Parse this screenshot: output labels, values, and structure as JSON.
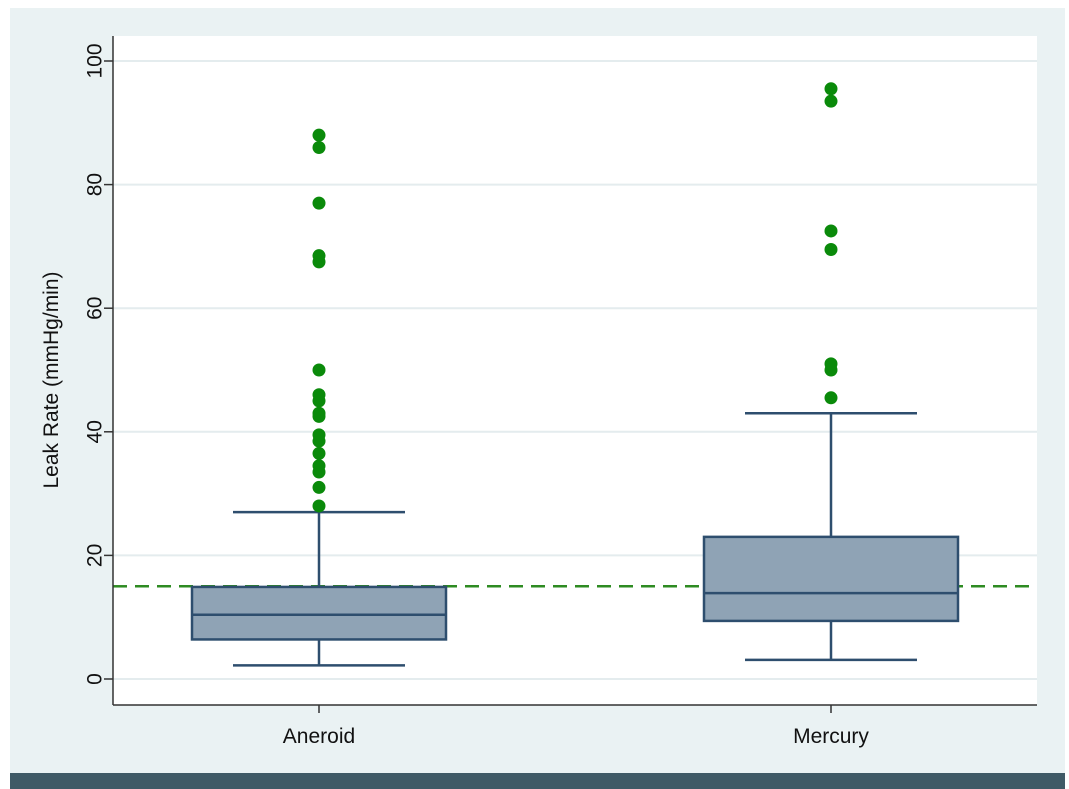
{
  "chart_data": {
    "type": "box",
    "title": "",
    "xlabel": "",
    "ylabel": "Leak Rate (mmHg/min)",
    "ylim": [
      0,
      100
    ],
    "yticks": [
      0,
      20,
      40,
      60,
      80,
      100
    ],
    "grid": true,
    "reference_line": {
      "y": 15,
      "style": "dashed",
      "color": "#2e8b22"
    },
    "colors": {
      "box_fill": "#8fa3b5",
      "box_stroke": "#2e4e6e",
      "outlier": "#0a8a0a",
      "plot_bg": "#ffffff",
      "outer_bg": "#eaf2f3",
      "grid": "#e4ecee"
    },
    "categories": [
      "Aneroid",
      "Mercury"
    ],
    "boxes": [
      {
        "category": "Aneroid",
        "whisker_low": 2.2,
        "q1": 6.4,
        "median": 10.4,
        "q3": 14.9,
        "whisker_high": 27.0,
        "outliers": [
          28,
          31,
          33.5,
          34.5,
          36.5,
          38.5,
          39.5,
          42.5,
          43,
          45,
          46,
          50,
          67.5,
          68.5,
          77,
          86,
          88
        ]
      },
      {
        "category": "Mercury",
        "whisker_low": 3.1,
        "q1": 9.4,
        "median": 13.9,
        "q3": 23.0,
        "whisker_high": 43.0,
        "outliers": [
          45.5,
          50,
          51,
          69.5,
          72.5,
          93.5,
          95.5
        ]
      }
    ]
  }
}
